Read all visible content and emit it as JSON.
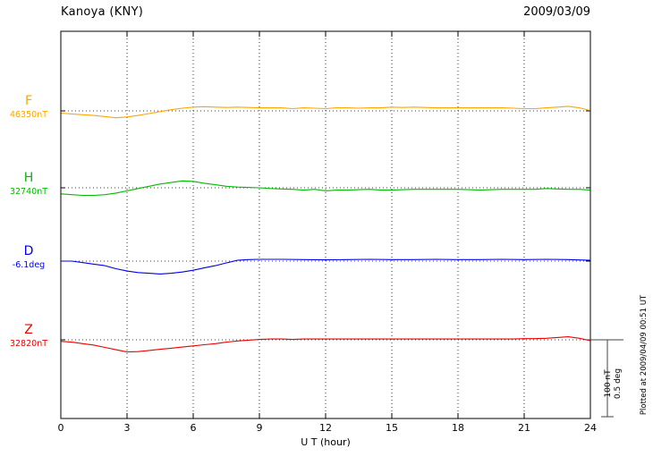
{
  "chart_data": {
    "type": "line",
    "title": "Kanoya (KNY)",
    "date": "2009/03/09",
    "xlabel": "U T (hour)",
    "x_range": [
      0,
      24
    ],
    "x_ticks": [
      0,
      3,
      6,
      9,
      12,
      15,
      18,
      21,
      24
    ],
    "grid": "dotted vertical gridlines every 3 hours, dotted horizontal baseline per trace",
    "legend_position": "left margin trace labels",
    "plotted_at": "Plotted at 2009/04/09 00:51 UT",
    "scale_bar": {
      "nT": 100,
      "deg": 0.5,
      "nT_label": "100 nT",
      "deg_label": "0.5 deg"
    },
    "note": "series points are [UT hour, offset from baseline value in series unit]",
    "series": [
      {
        "name": "F",
        "baseline_label": "46350nT",
        "baseline_value": 46350,
        "unit": "nT",
        "color": "#FFA500",
        "points": [
          [
            0,
            -3
          ],
          [
            0.5,
            -4
          ],
          [
            1,
            -5
          ],
          [
            1.5,
            -6
          ],
          [
            2,
            -7.5
          ],
          [
            2.5,
            -9
          ],
          [
            3,
            -8
          ],
          [
            3.5,
            -6
          ],
          [
            4,
            -3.5
          ],
          [
            4.5,
            -1
          ],
          [
            5,
            1.5
          ],
          [
            5.5,
            3.5
          ],
          [
            6,
            5
          ],
          [
            6.5,
            5.5
          ],
          [
            7,
            5
          ],
          [
            7.5,
            4.5
          ],
          [
            8,
            5
          ],
          [
            8.5,
            4.5
          ],
          [
            9,
            4
          ],
          [
            9.5,
            4
          ],
          [
            10,
            4
          ],
          [
            10.5,
            3
          ],
          [
            11,
            4
          ],
          [
            11.5,
            3.5
          ],
          [
            12,
            3
          ],
          [
            12.5,
            4
          ],
          [
            13,
            4
          ],
          [
            13.5,
            3.5
          ],
          [
            14,
            4
          ],
          [
            14.5,
            4
          ],
          [
            15,
            5
          ],
          [
            15.5,
            4.5
          ],
          [
            16,
            5
          ],
          [
            16.5,
            4.5
          ],
          [
            17,
            4
          ],
          [
            17.5,
            4
          ],
          [
            18,
            4
          ],
          [
            18.5,
            4
          ],
          [
            19,
            4
          ],
          [
            19.5,
            4
          ],
          [
            20,
            4
          ],
          [
            20.5,
            3.5
          ],
          [
            21,
            3
          ],
          [
            21.5,
            3
          ],
          [
            22,
            4
          ],
          [
            22.5,
            5
          ],
          [
            23,
            6
          ],
          [
            23.5,
            4
          ],
          [
            24,
            0.5
          ]
        ]
      },
      {
        "name": "H",
        "baseline_label": "32740nT",
        "baseline_value": 32740,
        "unit": "nT",
        "color": "#00BB00",
        "points": [
          [
            0,
            -8
          ],
          [
            0.5,
            -9
          ],
          [
            1,
            -10
          ],
          [
            1.5,
            -10
          ],
          [
            2,
            -9
          ],
          [
            2.5,
            -7
          ],
          [
            3,
            -4
          ],
          [
            3.5,
            -1
          ],
          [
            4,
            2
          ],
          [
            4.5,
            5
          ],
          [
            5,
            7
          ],
          [
            5.5,
            9
          ],
          [
            6,
            8.5
          ],
          [
            6.5,
            6
          ],
          [
            7,
            4
          ],
          [
            7.5,
            2
          ],
          [
            8,
            1
          ],
          [
            8.5,
            0.5
          ],
          [
            9,
            0
          ],
          [
            9.5,
            -1
          ],
          [
            10,
            -1.5
          ],
          [
            10.5,
            -2
          ],
          [
            11,
            -3
          ],
          [
            11.5,
            -2
          ],
          [
            12,
            -4
          ],
          [
            12.5,
            -3
          ],
          [
            13,
            -3
          ],
          [
            13.5,
            -2.5
          ],
          [
            14,
            -2
          ],
          [
            14.5,
            -3
          ],
          [
            15,
            -3
          ],
          [
            15.5,
            -2.5
          ],
          [
            16,
            -2
          ],
          [
            16.5,
            -2
          ],
          [
            17,
            -2
          ],
          [
            17.5,
            -2
          ],
          [
            18,
            -2
          ],
          [
            18.5,
            -2.5
          ],
          [
            19,
            -3
          ],
          [
            19.5,
            -2.5
          ],
          [
            20,
            -2
          ],
          [
            20.5,
            -2
          ],
          [
            21,
            -2
          ],
          [
            21.5,
            -2
          ],
          [
            22,
            -1
          ],
          [
            22.5,
            -1.5
          ],
          [
            23,
            -2
          ],
          [
            23.5,
            -2
          ],
          [
            24,
            -3
          ]
        ]
      },
      {
        "name": "D",
        "baseline_label": "-6.1deg",
        "baseline_value": -6.1,
        "unit": "deg",
        "color": "#0000EE",
        "points": [
          [
            0,
            0
          ],
          [
            0.5,
            0
          ],
          [
            1,
            -0.01
          ],
          [
            1.5,
            -0.02
          ],
          [
            2,
            -0.03
          ],
          [
            2.5,
            -0.05
          ],
          [
            3,
            -0.065
          ],
          [
            3.5,
            -0.075
          ],
          [
            4,
            -0.08
          ],
          [
            4.5,
            -0.085
          ],
          [
            5,
            -0.08
          ],
          [
            5.5,
            -0.072
          ],
          [
            6,
            -0.06
          ],
          [
            6.5,
            -0.045
          ],
          [
            7,
            -0.03
          ],
          [
            7.5,
            -0.012
          ],
          [
            8,
            0.005
          ],
          [
            8.5,
            0.01
          ],
          [
            9,
            0.012
          ],
          [
            10,
            0.012
          ],
          [
            11,
            0.01
          ],
          [
            12,
            0.008
          ],
          [
            13,
            0.01
          ],
          [
            14,
            0.012
          ],
          [
            15,
            0.01
          ],
          [
            16,
            0.01
          ],
          [
            17,
            0.012
          ],
          [
            18,
            0.01
          ],
          [
            19,
            0.01
          ],
          [
            20,
            0.012
          ],
          [
            21,
            0.01
          ],
          [
            22,
            0.012
          ],
          [
            23,
            0.01
          ],
          [
            24,
            0.005
          ]
        ]
      },
      {
        "name": "Z",
        "baseline_label": "32820nT",
        "baseline_value": 32820,
        "unit": "nT",
        "color": "#EE0000",
        "points": [
          [
            0,
            -2
          ],
          [
            0.5,
            -3
          ],
          [
            1,
            -5
          ],
          [
            1.5,
            -7
          ],
          [
            2,
            -10
          ],
          [
            2.5,
            -13
          ],
          [
            3,
            -16
          ],
          [
            3.5,
            -15.5
          ],
          [
            4,
            -14
          ],
          [
            4.5,
            -12.5
          ],
          [
            5,
            -11
          ],
          [
            5.5,
            -9.5
          ],
          [
            6,
            -8
          ],
          [
            6.5,
            -6.5
          ],
          [
            7,
            -5
          ],
          [
            7.5,
            -3
          ],
          [
            8,
            -1.5
          ],
          [
            8.5,
            -0.5
          ],
          [
            9,
            0.5
          ],
          [
            9.5,
            1
          ],
          [
            10,
            1
          ],
          [
            10.5,
            0.5
          ],
          [
            11,
            1
          ],
          [
            11.5,
            1
          ],
          [
            12,
            1
          ],
          [
            12.5,
            1
          ],
          [
            13,
            1
          ],
          [
            13.5,
            1
          ],
          [
            14,
            1
          ],
          [
            14.5,
            1
          ],
          [
            15,
            1
          ],
          [
            15.5,
            1
          ],
          [
            16,
            1
          ],
          [
            16.5,
            1
          ],
          [
            17,
            1
          ],
          [
            17.5,
            1
          ],
          [
            18,
            1
          ],
          [
            18.5,
            1
          ],
          [
            19,
            1
          ],
          [
            19.5,
            1
          ],
          [
            20,
            1
          ],
          [
            20.5,
            1
          ],
          [
            21,
            1.5
          ],
          [
            21.5,
            1.5
          ],
          [
            22,
            2
          ],
          [
            22.5,
            3
          ],
          [
            23,
            4
          ],
          [
            23.5,
            2
          ],
          [
            24,
            -1
          ]
        ]
      }
    ]
  }
}
